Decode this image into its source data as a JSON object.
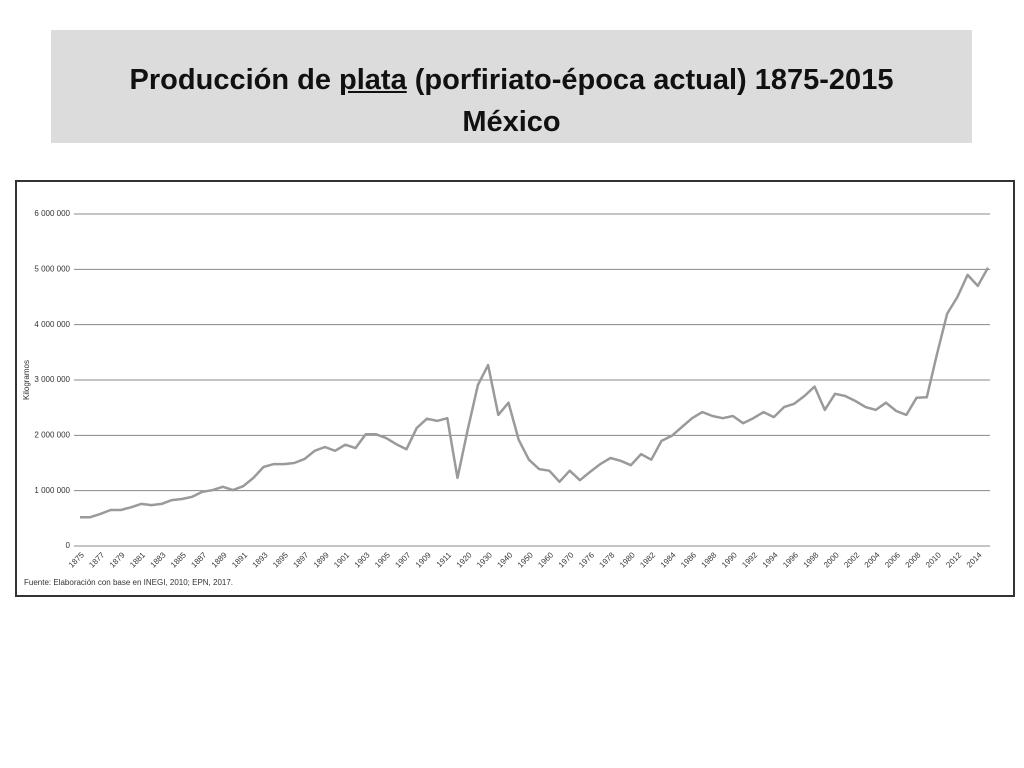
{
  "header": {
    "title_before": "Producción de ",
    "title_underlined": "plata",
    "title_after": " (porfiriato-época actual) 1875-2015",
    "title_line2": "México"
  },
  "chart_data": {
    "type": "line",
    "y_label": "Kilogramos",
    "source": "Fuente: Elaboración con base en INEGI, 2010; EPN, 2017.",
    "categories": [
      "1875",
      null,
      "1877",
      null,
      "1879",
      null,
      "1881",
      null,
      "1883",
      null,
      "1885",
      null,
      "1887",
      null,
      "1889",
      null,
      "1891",
      null,
      "1893",
      null,
      "1895",
      null,
      "1897",
      null,
      "1899",
      null,
      "1901",
      null,
      "1903",
      null,
      "1905",
      null,
      "1907",
      null,
      "1909",
      null,
      "1911",
      null,
      "1920",
      null,
      "1930",
      null,
      "1940",
      null,
      "1950",
      null,
      "1960",
      null,
      "1970",
      null,
      "1976",
      null,
      "1978",
      null,
      "1980",
      null,
      "1982",
      null,
      "1984",
      null,
      "1986",
      null,
      "1988",
      null,
      "1990",
      null,
      "1992",
      null,
      "1994",
      null,
      "1996",
      null,
      "1998",
      null,
      "2000",
      null,
      "2002",
      null,
      "2004",
      null,
      "2006",
      null,
      "2008",
      null,
      "2010",
      null,
      "2012",
      null,
      "2014",
      null
    ],
    "values": [
      520000,
      520000,
      580000,
      650000,
      650000,
      700000,
      760000,
      740000,
      760000,
      830000,
      850000,
      890000,
      980000,
      1010000,
      1070000,
      1010000,
      1080000,
      1230000,
      1430000,
      1480000,
      1480000,
      1500000,
      1570000,
      1720000,
      1790000,
      1720000,
      1830000,
      1770000,
      2020000,
      2020000,
      1950000,
      1840000,
      1750000,
      2130000,
      2300000,
      2260000,
      2310000,
      1230000,
      2100000,
      2910000,
      3270000,
      2370000,
      2590000,
      1920000,
      1560000,
      1390000,
      1360000,
      1160000,
      1360000,
      1190000,
      1340000,
      1480000,
      1590000,
      1540000,
      1460000,
      1660000,
      1560000,
      1900000,
      1990000,
      2150000,
      2310000,
      2420000,
      2350000,
      2310000,
      2350000,
      2220000,
      2310000,
      2420000,
      2330000,
      2510000,
      2570000,
      2710000,
      2880000,
      2460000,
      2750000,
      2710000,
      2620000,
      2510000,
      2460000,
      2590000,
      2440000,
      2370000,
      2680000,
      2690000,
      3470000,
      4200000,
      4500000,
      4900000,
      4700000,
      5030000
    ],
    "color": "#9a9a9a",
    "ylim": [
      0,
      6000000
    ],
    "yticks": [
      0,
      {
        "value": 1000000,
        "label": "1 000 000"
      },
      {
        "value": 2000000,
        "label": "2 000 000"
      },
      {
        "value": 3000000,
        "label": "3 000 000"
      },
      {
        "value": 4000000,
        "label": "4 000 000"
      },
      {
        "value": 5000000,
        "label": "5 000 000"
      },
      {
        "value": 6000000,
        "label": "6 000 000"
      }
    ],
    "grid": true
  }
}
